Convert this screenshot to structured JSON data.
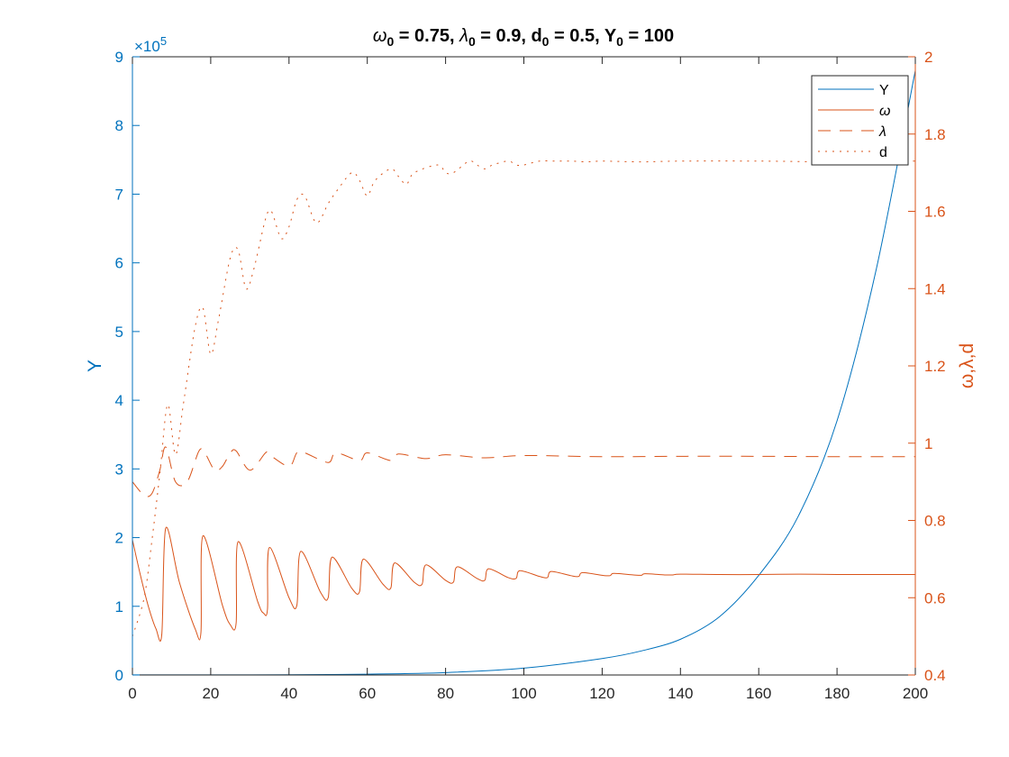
{
  "chart_data": {
    "type": "line",
    "title_parts": {
      "w_sym": "ω",
      "w_sub": "0",
      "w_val": " = 0.75, ",
      "l_sym": "λ",
      "l_sub": "0",
      "l_val": " = 0.9, d",
      "d_sub": "0",
      "d_val": " = 0.5, Y",
      "y_sub": "0",
      "y_val": " = 100"
    },
    "x_axis": {
      "min": 0,
      "max": 200,
      "ticks": [
        0,
        20,
        40,
        60,
        80,
        100,
        120,
        140,
        160,
        180,
        200
      ]
    },
    "y_left": {
      "label": "Y",
      "min": 0,
      "max": 9,
      "ticks": [
        0,
        1,
        2,
        3,
        4,
        5,
        6,
        7,
        8,
        9
      ],
      "exponent_prefix": "×10",
      "exponent": "5",
      "color": "#0072BD"
    },
    "y_right": {
      "label": "ω,λ,d",
      "min": 0.4,
      "max": 2.0,
      "ticks": [
        "0.4",
        "0.6",
        "0.8",
        "1",
        "1.2",
        "1.4",
        "1.6",
        "1.8",
        "2"
      ],
      "color": "#D95319"
    },
    "legend": {
      "placement": "top-right",
      "entries": [
        {
          "name": "Y",
          "style": "solid",
          "color": "#0072BD"
        },
        {
          "name": "ω",
          "style": "solid",
          "color": "#D95319"
        },
        {
          "name": "λ",
          "style": "dashed",
          "color": "#D95319"
        },
        {
          "name": "d",
          "style": "dotted",
          "color": "#D95319"
        }
      ]
    },
    "series": [
      {
        "name": "Y",
        "axis": "left",
        "style": "solid",
        "color": "#0072BD",
        "x": [
          0,
          20,
          40,
          60,
          80,
          100,
          120,
          130,
          140,
          150,
          160,
          170,
          180,
          190,
          200
        ],
        "y": [
          0.001,
          0.0015,
          0.0035,
          0.012,
          0.035,
          0.1,
          0.24,
          0.35,
          0.52,
          0.85,
          1.45,
          2.3,
          3.7,
          5.9,
          8.8
        ]
      },
      {
        "name": "ω",
        "axis": "right",
        "style": "solid",
        "color": "#D95319",
        "x": [
          0,
          2,
          4,
          6,
          7.5,
          8.5,
          12,
          16,
          17.5,
          18,
          23,
          25,
          26.5,
          27,
          32,
          33.5,
          34.5,
          35,
          40,
          42,
          43,
          48,
          50,
          51,
          56,
          58,
          59,
          64,
          66,
          67,
          72,
          74,
          75,
          80,
          82,
          83,
          88,
          90,
          91,
          96,
          98,
          99,
          104,
          106,
          107,
          112,
          114,
          115,
          120,
          122,
          123,
          128,
          130,
          131,
          136,
          138,
          140,
          150,
          160,
          170,
          180,
          190,
          200
        ],
        "y": [
          0.75,
          0.66,
          0.58,
          0.52,
          0.505,
          0.78,
          0.64,
          0.52,
          0.51,
          0.76,
          0.58,
          0.53,
          0.535,
          0.745,
          0.59,
          0.56,
          0.57,
          0.73,
          0.6,
          0.58,
          0.72,
          0.615,
          0.6,
          0.705,
          0.625,
          0.615,
          0.7,
          0.635,
          0.625,
          0.69,
          0.64,
          0.635,
          0.685,
          0.645,
          0.64,
          0.68,
          0.65,
          0.645,
          0.675,
          0.652,
          0.65,
          0.67,
          0.655,
          0.652,
          0.668,
          0.657,
          0.655,
          0.665,
          0.658,
          0.657,
          0.663,
          0.659,
          0.658,
          0.662,
          0.659,
          0.659,
          0.661,
          0.66,
          0.66,
          0.661,
          0.66,
          0.66,
          0.66
        ]
      },
      {
        "name": "λ",
        "axis": "right",
        "style": "dashed",
        "color": "#D95319",
        "x": [
          0,
          3,
          5,
          7,
          8.5,
          11,
          14,
          17,
          18.5,
          21,
          23,
          25,
          26.5,
          30,
          34,
          35,
          40,
          42,
          44,
          50,
          52,
          58,
          60,
          66,
          68,
          75,
          80,
          90,
          100,
          120,
          140,
          160,
          180,
          200
        ],
        "y": [
          0.9,
          0.865,
          0.87,
          0.93,
          0.99,
          0.9,
          0.9,
          0.98,
          0.975,
          0.93,
          0.94,
          0.975,
          0.98,
          0.93,
          0.975,
          0.97,
          0.94,
          0.975,
          0.975,
          0.95,
          0.975,
          0.955,
          0.975,
          0.955,
          0.972,
          0.96,
          0.97,
          0.962,
          0.968,
          0.965,
          0.966,
          0.966,
          0.965,
          0.965
        ],
        "dasharray": "14 10"
      },
      {
        "name": "d",
        "axis": "right",
        "style": "dotted",
        "color": "#D95319",
        "x": [
          0,
          3,
          5,
          7,
          9,
          11,
          13,
          16,
          18,
          20,
          22,
          25,
          27,
          29,
          31,
          34,
          35.5,
          38,
          40,
          42,
          44,
          47,
          50,
          52,
          56,
          58,
          60,
          62,
          66,
          68,
          70,
          72,
          78,
          80,
          82,
          86,
          88,
          90,
          92,
          96,
          98,
          100,
          104,
          108,
          112,
          116,
          120,
          130,
          140,
          160,
          180,
          200
        ],
        "y": [
          0.5,
          0.6,
          0.75,
          0.92,
          1.1,
          0.97,
          1.1,
          1.3,
          1.35,
          1.23,
          1.32,
          1.48,
          1.5,
          1.4,
          1.45,
          1.58,
          1.6,
          1.53,
          1.56,
          1.63,
          1.64,
          1.57,
          1.62,
          1.65,
          1.7,
          1.68,
          1.64,
          1.68,
          1.71,
          1.69,
          1.67,
          1.7,
          1.72,
          1.7,
          1.7,
          1.73,
          1.72,
          1.71,
          1.72,
          1.73,
          1.72,
          1.72,
          1.73,
          1.73,
          1.73,
          1.728,
          1.73,
          1.728,
          1.73,
          1.73,
          1.728,
          1.73
        ],
        "dasharray": "2 6"
      }
    ]
  }
}
